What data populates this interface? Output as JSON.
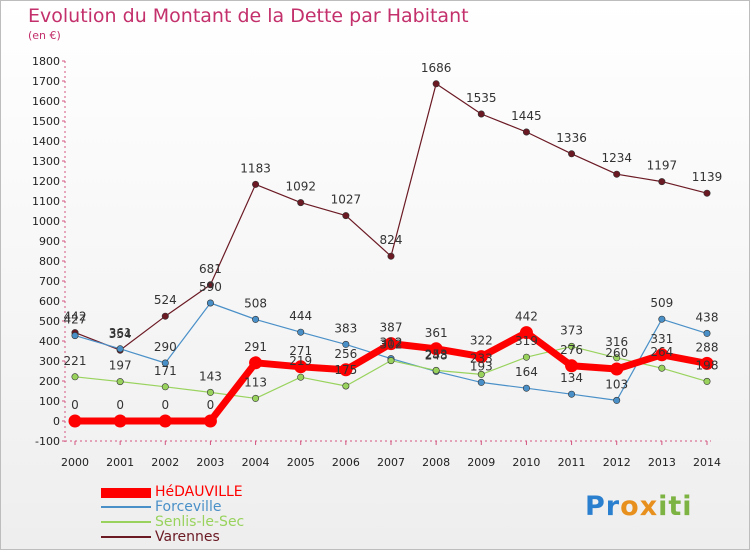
{
  "title": "Evolution du Montant de la Dette par Habitant",
  "subtitle": "(en €)",
  "logo": {
    "letters": [
      "P",
      "r",
      "o",
      "x",
      "i",
      "t",
      "i"
    ],
    "colors": [
      "#2a7fcf",
      "#2a7fcf",
      "#e8901e",
      "#e8901e",
      "#7cb342",
      "#7cb342",
      "#7cb342"
    ]
  },
  "chart_data": {
    "type": "line",
    "x": [
      2000,
      2001,
      2002,
      2003,
      2004,
      2005,
      2006,
      2007,
      2008,
      2009,
      2010,
      2011,
      2012,
      2013,
      2014
    ],
    "ylim": [
      -100,
      1800
    ],
    "ystep": 100,
    "grid": false,
    "legend_position": "bottom-left",
    "series": [
      {
        "name": "Varennes",
        "color": "#6b1a24",
        "values": [
          442,
          354,
          524,
          681,
          1183,
          1092,
          1027,
          824,
          1686,
          1535,
          1445,
          1336,
          1234,
          1197,
          1139
        ],
        "labels": [
          "442",
          "354",
          "524",
          "681",
          "1183",
          "1092",
          "1027",
          "824",
          "1686",
          "1535",
          "1445",
          "1336",
          "1234",
          "1197",
          "1139"
        ]
      },
      {
        "name": "Forceville",
        "color": "#4a90c8",
        "values": [
          427,
          361,
          290,
          590,
          508,
          444,
          383,
          312,
          248,
          193,
          164,
          134,
          103,
          509,
          438
        ],
        "labels": [
          "427",
          "361",
          "290",
          "590",
          "508",
          "444",
          "383",
          "312",
          "248",
          "193",
          "164",
          "134",
          "103",
          "509",
          "438"
        ]
      },
      {
        "name": "Senlis-le-Sec",
        "color": "#99d35e",
        "values": [
          221,
          197,
          171,
          143,
          113,
          219,
          175,
          302,
          253,
          233,
          319,
          373,
          316,
          264,
          198
        ],
        "labels": [
          "221",
          "197",
          "171",
          "143",
          "113",
          "219",
          "175",
          "302",
          "253",
          "233",
          "319",
          "373",
          "316",
          "264",
          "198"
        ]
      },
      {
        "name": "HéDAUVILLE",
        "color": "#ff0000",
        "values": [
          0,
          0,
          0,
          0,
          291,
          271,
          256,
          387,
          361,
          322,
          442,
          276,
          260,
          331,
          288
        ],
        "labels": [
          "0",
          "0",
          "0",
          "0",
          "291",
          "271",
          "256",
          "387",
          "361",
          "322",
          "442",
          "276",
          "260",
          "331",
          "288"
        ]
      }
    ],
    "legend_order": [
      "HéDAUVILLE",
      "Forceville",
      "Senlis-le-Sec",
      "Varennes"
    ]
  }
}
